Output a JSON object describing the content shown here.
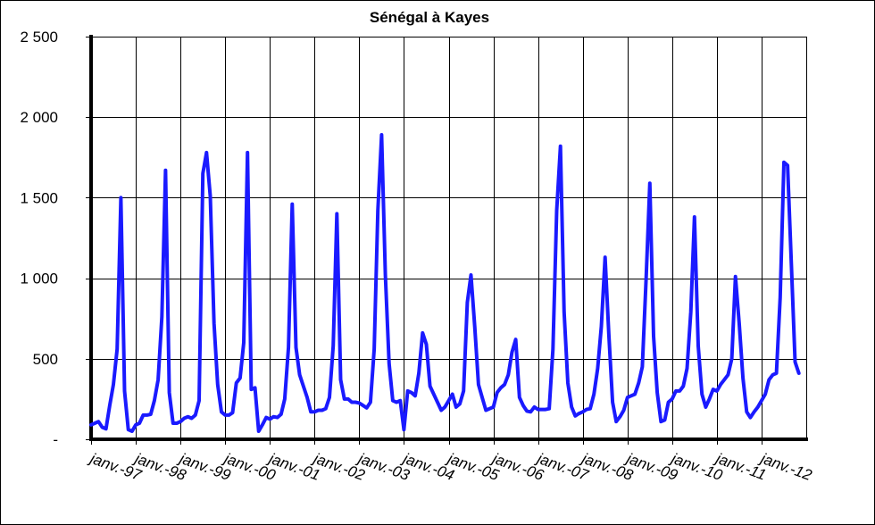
{
  "chart_data": {
    "type": "line",
    "title": "Sénégal à Kayes",
    "xlabel": "",
    "ylabel": "",
    "ylim": [
      0,
      2500
    ],
    "y_ticks": [
      {
        "value": 0,
        "label": "-"
      },
      {
        "value": 500,
        "label": "500"
      },
      {
        "value": 1000,
        "label": "1 000"
      },
      {
        "value": 1500,
        "label": "1 500"
      },
      {
        "value": 2000,
        "label": "2 000"
      },
      {
        "value": 2500,
        "label": "2 500"
      }
    ],
    "x_tick_labels": [
      "janv.-97",
      "janv.-98",
      "janv.-99",
      "janv.-00",
      "janv.-01",
      "janv.-02",
      "janv.-03",
      "janv.-04",
      "janv.-05",
      "janv.-06",
      "janv.-07",
      "janv.-08",
      "janv.-09",
      "janv.-10",
      "janv.-11",
      "janv.-12"
    ],
    "grid": true,
    "legend": "none",
    "series_color": "#1a1aff",
    "series": [
      {
        "x_start": "janv.-97",
        "step": "month",
        "values": [
          90,
          100,
          110,
          75,
          65,
          210,
          340,
          560,
          1500,
          300,
          60,
          50,
          90,
          100,
          150,
          150,
          155,
          240,
          370,
          760,
          1670,
          290,
          100,
          100,
          110,
          130,
          140,
          130,
          150,
          240,
          1650,
          1780,
          1510,
          720,
          340,
          170,
          150,
          150,
          165,
          350,
          380,
          600,
          1780,
          310,
          320,
          50,
          90,
          135,
          125,
          140,
          135,
          155,
          250,
          570,
          1460,
          570,
          400,
          330,
          260,
          170,
          170,
          180,
          180,
          190,
          260,
          580,
          1400,
          370,
          250,
          250,
          230,
          230,
          225,
          210,
          195,
          230,
          560,
          1420,
          1890,
          1020,
          470,
          240,
          230,
          240,
          60,
          300,
          290,
          270,
          410,
          660,
          590,
          330,
          280,
          230,
          180,
          200,
          240,
          280,
          200,
          220,
          300,
          850,
          1020,
          700,
          340,
          260,
          180,
          190,
          200,
          290,
          320,
          340,
          400,
          540,
          620,
          260,
          210,
          175,
          170,
          200,
          185,
          185,
          185,
          190,
          560,
          1420,
          1820,
          790,
          350,
          200,
          145,
          160,
          170,
          185,
          190,
          280,
          440,
          700,
          1130,
          650,
          230,
          110,
          140,
          180,
          260,
          270,
          280,
          350,
          450,
          990,
          1590,
          640,
          290,
          110,
          120,
          230,
          250,
          300,
          300,
          330,
          440,
          790,
          1380,
          580,
          280,
          200,
          250,
          310,
          300,
          340,
          370,
          400,
          500,
          1010,
          720,
          380,
          170,
          135,
          170,
          200,
          240,
          280,
          370,
          400,
          410,
          880,
          1720,
          1700,
          1090,
          480,
          410
        ]
      }
    ]
  }
}
